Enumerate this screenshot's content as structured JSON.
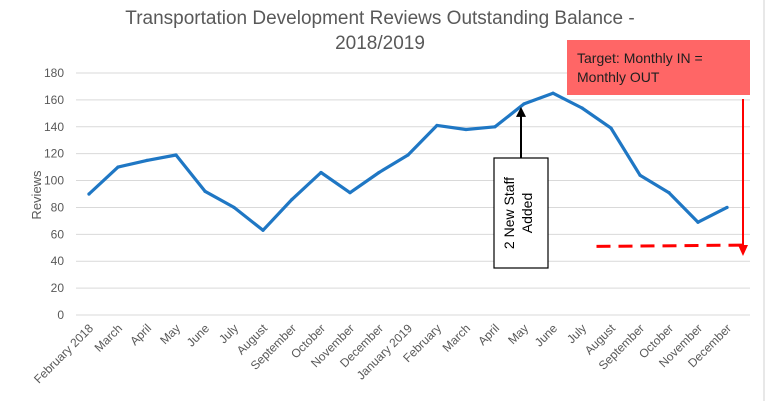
{
  "chart_data": {
    "type": "line",
    "title_lines": [
      "Transportation Development Reviews Outstanding Balance -",
      "2018/2019"
    ],
    "xlabel": "",
    "ylabel": "Reviews",
    "ylim": [
      0,
      180
    ],
    "yticks": [
      0,
      20,
      40,
      60,
      80,
      100,
      120,
      140,
      160,
      180
    ],
    "grid": true,
    "categories": [
      "February 2018",
      "March",
      "April",
      "May",
      "June",
      "July",
      "August",
      "September",
      "October",
      "November",
      "December",
      "January 2019",
      "February",
      "March",
      "April",
      "May",
      "June",
      "July",
      "August",
      "September",
      "October",
      "November",
      "December"
    ],
    "series": [
      {
        "color": "#1f77c4",
        "values": [
          90,
          110,
          115,
          119,
          92,
          80,
          63,
          86,
          106,
          91,
          106,
          119,
          141,
          138,
          140,
          157,
          165,
          154,
          139,
          104,
          91,
          69,
          80
        ]
      }
    ],
    "annotations": {
      "staff": {
        "lines": [
          "2 New Staff",
          "Added"
        ],
        "category_index": 15,
        "value": 157
      },
      "target": {
        "lines": [
          "Target: Monthly IN =",
          "Monthly OUT"
        ],
        "box_color": "#ff6666",
        "arrow_color": "#ff0000",
        "dashed_from": {
          "category_index": 17.5,
          "value": 51
        },
        "dashed_to": {
          "category_index": 22.6,
          "value": 52
        }
      }
    }
  }
}
